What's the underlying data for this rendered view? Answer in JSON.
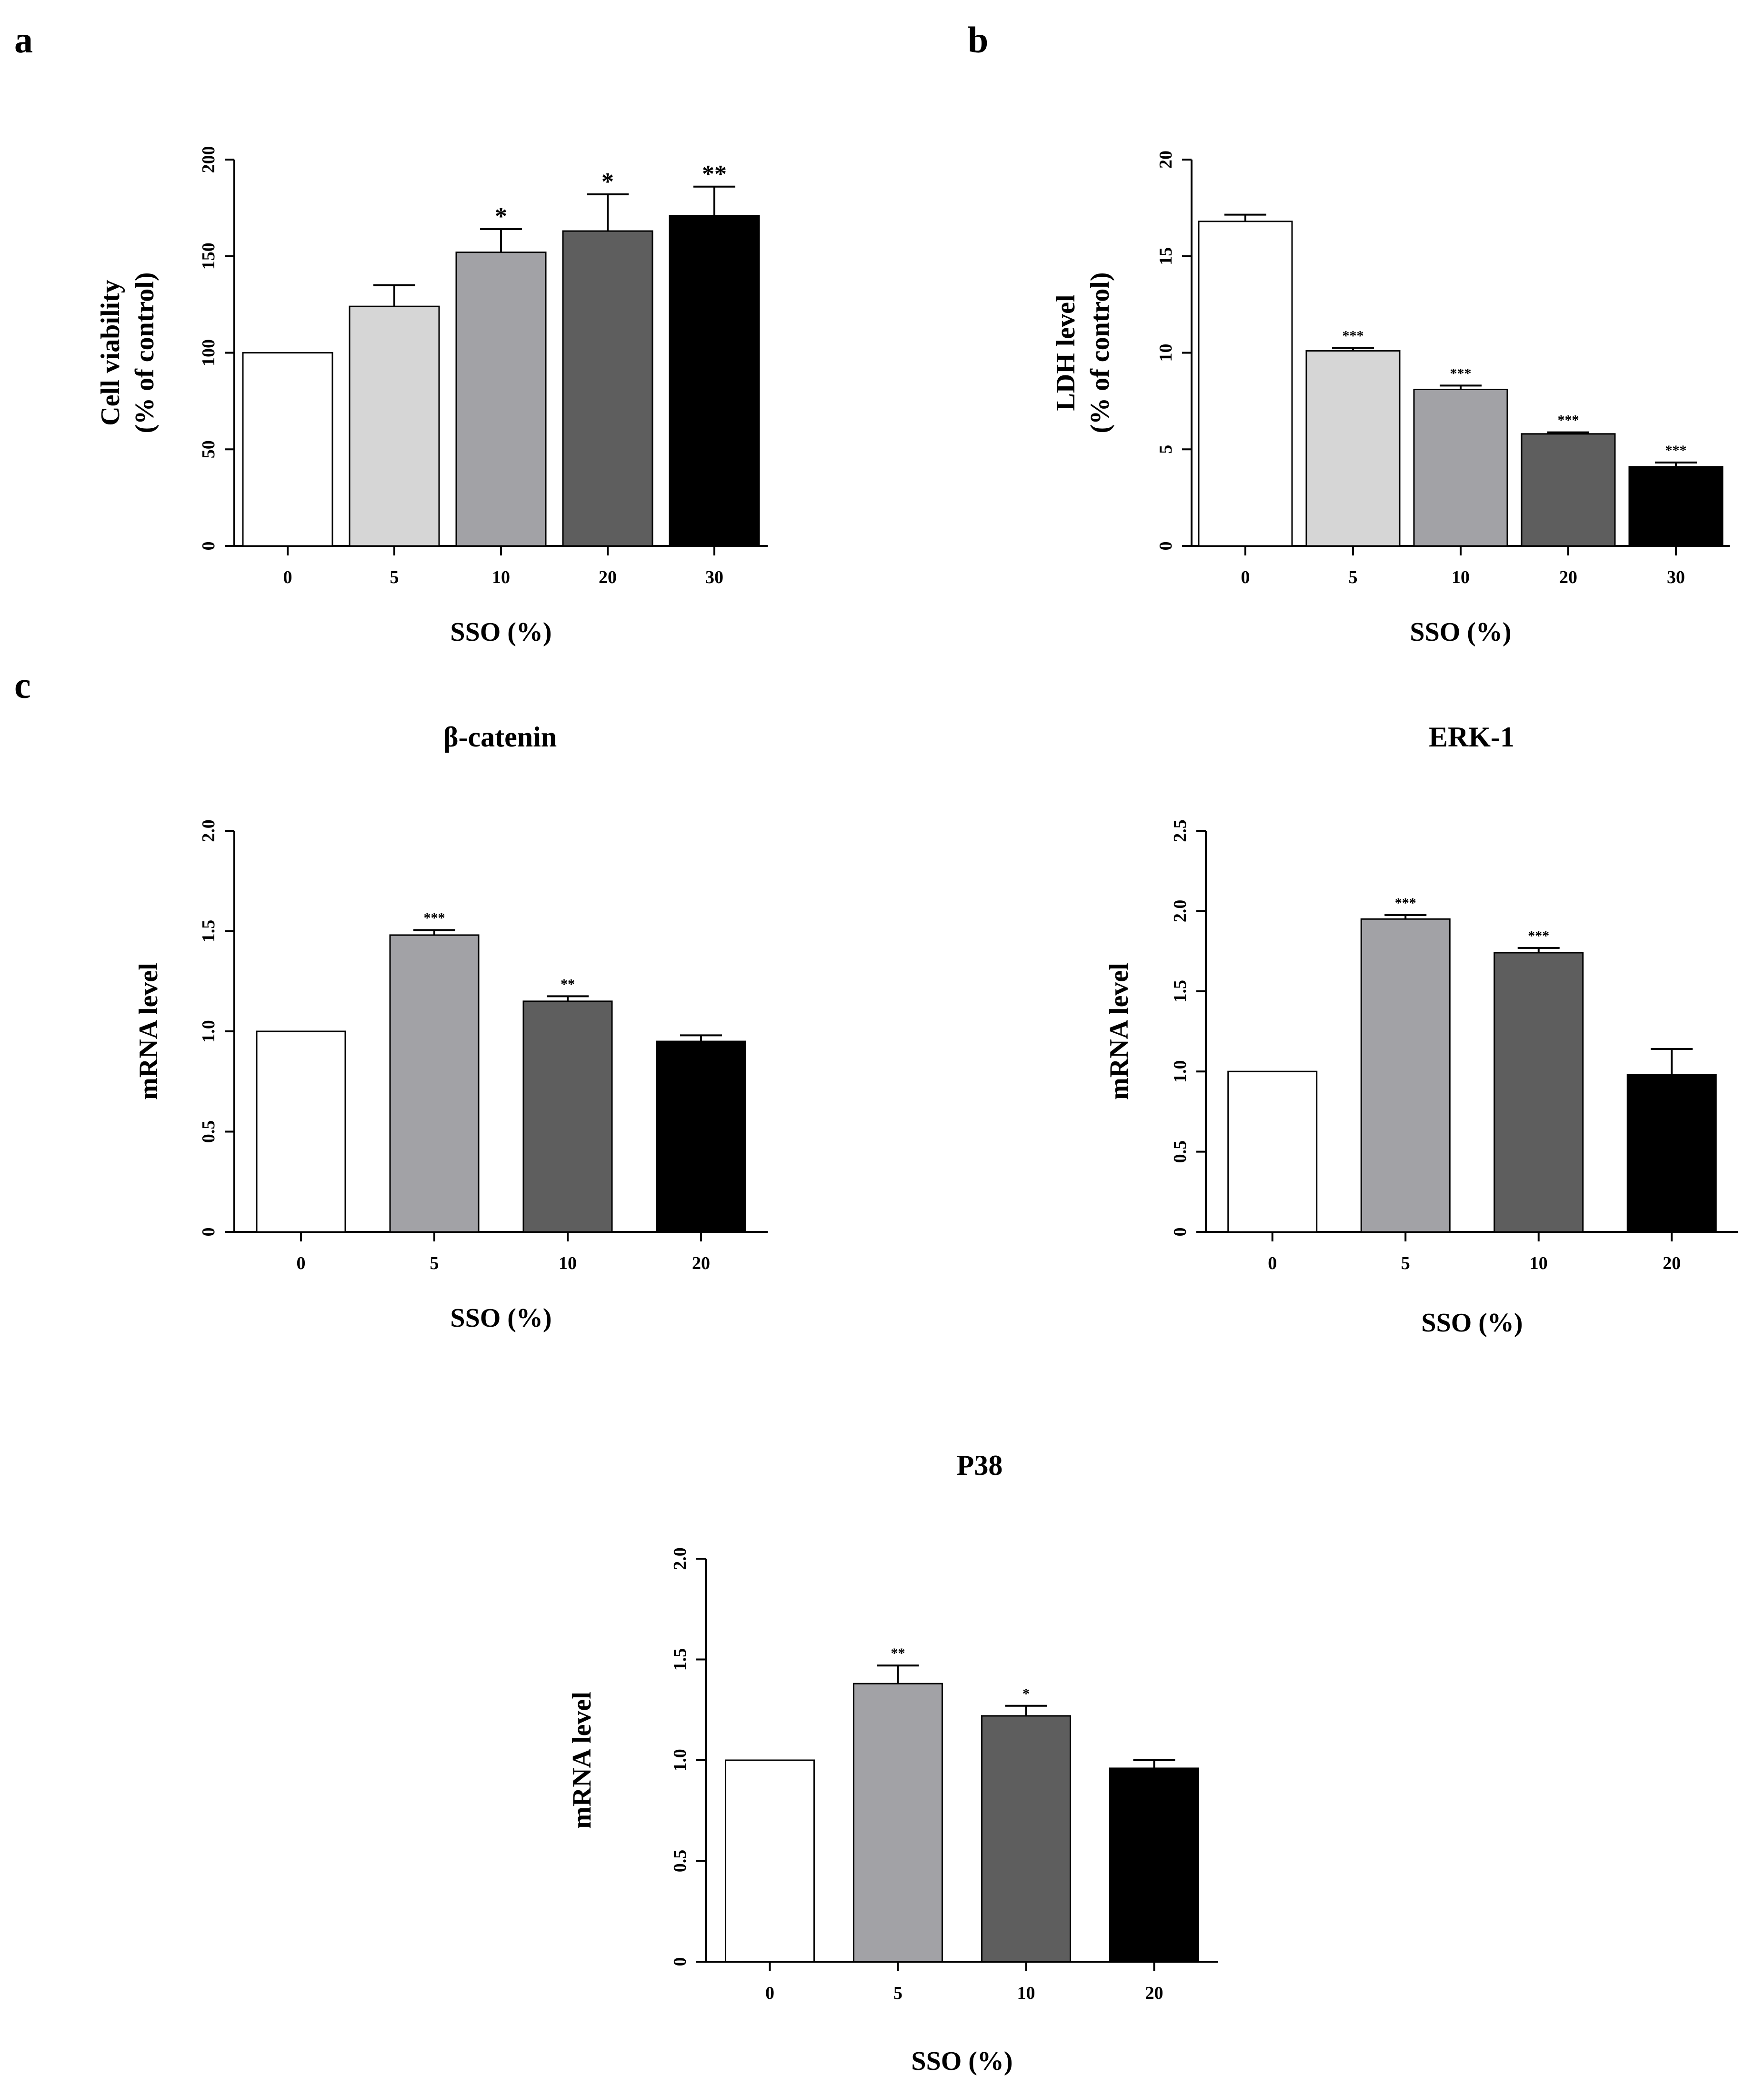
{
  "chart_data": [
    {
      "panel_label": "a",
      "type": "bar",
      "title": "",
      "xlabel": "SSO (%)",
      "ylabel_lines": [
        "Cell viability",
        "(% of control)"
      ],
      "categories": [
        "0",
        "5",
        "10",
        "20",
        "30"
      ],
      "values": [
        100,
        124,
        152,
        163,
        171
      ],
      "errors": [
        0,
        11,
        12,
        19,
        15
      ],
      "significance": [
        "",
        "",
        "*",
        "*",
        "**"
      ],
      "colors": [
        "#ffffff",
        "#d6d6d6",
        "#a2a2a6",
        "#5e5e5e",
        "#000000"
      ],
      "ylim": [
        0,
        200
      ],
      "yticks": [
        0,
        50,
        100,
        150,
        200
      ],
      "ytick_labels": [
        "0",
        "50",
        "100",
        "150",
        "200"
      ]
    },
    {
      "panel_label": "b",
      "type": "bar",
      "title": "",
      "xlabel": "SSO (%)",
      "ylabel_lines": [
        "LDH level",
        "(% of control)"
      ],
      "categories": [
        "0",
        "5",
        "10",
        "20",
        "30"
      ],
      "values": [
        16.8,
        10.1,
        8.1,
        5.8,
        4.1
      ],
      "errors": [
        0.35,
        0.15,
        0.2,
        0.08,
        0.22
      ],
      "significance": [
        "",
        "***",
        "***",
        "***",
        "***"
      ],
      "colors": [
        "#ffffff",
        "#d6d6d6",
        "#a2a2a6",
        "#5e5e5e",
        "#000000"
      ],
      "ylim": [
        0,
        20
      ],
      "yticks": [
        0,
        5,
        10,
        15,
        20
      ],
      "ytick_labels": [
        "0",
        "5",
        "10",
        "15",
        "20"
      ]
    },
    {
      "panel_label": "c",
      "type": "bar",
      "title": "β-catenin",
      "xlabel": "SSO (%)",
      "ylabel_lines": [
        "mRNA level"
      ],
      "categories": [
        "0",
        "5",
        "10",
        "20"
      ],
      "values": [
        1.0,
        1.48,
        1.15,
        0.95
      ],
      "errors": [
        0,
        0.025,
        0.025,
        0.03
      ],
      "significance": [
        "",
        "***",
        "**",
        ""
      ],
      "colors": [
        "#ffffff",
        "#a2a2a6",
        "#5e5e5e",
        "#000000"
      ],
      "ylim": [
        0,
        2.0
      ],
      "yticks": [
        0,
        0.5,
        1.0,
        1.5,
        2.0
      ],
      "ytick_labels": [
        "0",
        "0.5",
        "1.0",
        "1.5",
        "2.0"
      ]
    },
    {
      "panel_label": "",
      "type": "bar",
      "title": "ERK-1",
      "xlabel": "SSO (%)",
      "ylabel_lines": [
        "mRNA level"
      ],
      "categories": [
        "0",
        "5",
        "10",
        "20"
      ],
      "values": [
        1.0,
        1.95,
        1.74,
        0.98
      ],
      "errors": [
        0,
        0.025,
        0.03,
        0.16
      ],
      "significance": [
        "",
        "***",
        "***",
        ""
      ],
      "colors": [
        "#ffffff",
        "#a2a2a6",
        "#5e5e5e",
        "#000000"
      ],
      "ylim": [
        0,
        2.5
      ],
      "yticks": [
        0,
        0.5,
        1.0,
        1.5,
        2.0,
        2.5
      ],
      "ytick_labels": [
        "0",
        "0.5",
        "1.0",
        "1.5",
        "2.0",
        "2.5"
      ]
    },
    {
      "panel_label": "",
      "type": "bar",
      "title": "P38",
      "xlabel": "SSO (%)",
      "ylabel_lines": [
        "mRNA level"
      ],
      "categories": [
        "0",
        "5",
        "10",
        "20"
      ],
      "values": [
        1.0,
        1.38,
        1.22,
        0.96
      ],
      "errors": [
        0,
        0.09,
        0.05,
        0.04
      ],
      "significance": [
        "",
        "**",
        "*",
        ""
      ],
      "colors": [
        "#ffffff",
        "#a2a2a6",
        "#5e5e5e",
        "#000000"
      ],
      "ylim": [
        0,
        2.0
      ],
      "yticks": [
        0,
        0.5,
        1.0,
        1.5,
        2.0
      ],
      "ytick_labels": [
        "0",
        "0.5",
        "1.0",
        "1.5",
        "2.0"
      ]
    }
  ]
}
